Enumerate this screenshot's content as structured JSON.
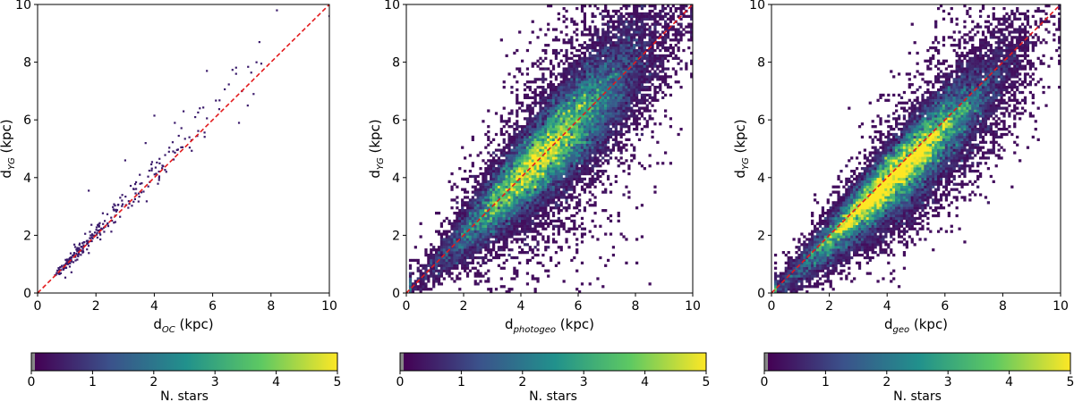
{
  "chart_data": [
    {
      "type": "scatter",
      "id": "panel-oc",
      "xlabel_main": "d",
      "xlabel_sub": "OC",
      "xlabel_unit": " (kpc)",
      "ylabel_main": "d",
      "ylabel_sub": "YG",
      "ylabel_unit": " (kpc)",
      "xlim": [
        0,
        10
      ],
      "ylim": [
        0,
        10
      ],
      "xticks": [
        "0",
        "2",
        "4",
        "6",
        "8",
        "10"
      ],
      "yticks": [
        "0",
        "2",
        "4",
        "6",
        "8",
        "10"
      ],
      "reference_line": "y = x",
      "point_color": "#3a1a6b",
      "line_color": "#e31a1c",
      "sample_points": [
        [
          0.8,
          0.8
        ],
        [
          1.2,
          1.3
        ],
        [
          1.5,
          1.6
        ],
        [
          1.8,
          1.8
        ],
        [
          1.75,
          3.55
        ],
        [
          2.1,
          2.3
        ],
        [
          2.3,
          2.5
        ],
        [
          2.6,
          2.9
        ],
        [
          2.9,
          3.4
        ],
        [
          3.0,
          4.6
        ],
        [
          3.3,
          3.6
        ],
        [
          3.5,
          4.1
        ],
        [
          3.7,
          5.2
        ],
        [
          4.0,
          6.15
        ],
        [
          4.3,
          4.4
        ],
        [
          4.5,
          4.9
        ],
        [
          4.7,
          5.9
        ],
        [
          5.0,
          6.3
        ],
        [
          5.2,
          5.4
        ],
        [
          5.4,
          6.1
        ],
        [
          5.8,
          7.7
        ],
        [
          6.8,
          7.6
        ],
        [
          7.0,
          7.0
        ],
        [
          7.4,
          6.9
        ],
        [
          6.9,
          5.9
        ],
        [
          7.2,
          6.5
        ],
        [
          7.6,
          8.7
        ],
        [
          7.5,
          8.0
        ],
        [
          8.2,
          9.8
        ],
        [
          10.0,
          9.6
        ]
      ]
    },
    {
      "type": "heatmap",
      "id": "panel-photogeo",
      "xlabel_main": "d",
      "xlabel_sub": "photogeo",
      "xlabel_unit": " (kpc)",
      "ylabel_main": "d",
      "ylabel_sub": "YG",
      "ylabel_unit": " (kpc)",
      "xlim": [
        0,
        10
      ],
      "ylim": [
        0,
        10
      ],
      "xticks": [
        "0",
        "2",
        "4",
        "6",
        "8",
        "10"
      ],
      "yticks": [
        "0",
        "2",
        "4",
        "6",
        "8",
        "10"
      ],
      "reference_line": "y = x",
      "density_peak_x": 5.0,
      "ridge_slope": 1.0,
      "scatter_width_kpc": 1.1,
      "colorbar": {
        "label": "N. stars",
        "min": 0,
        "max": 5,
        "ticks": [
          "0",
          "1",
          "2",
          "3",
          "4",
          "5"
        ],
        "colormap": "viridis"
      }
    },
    {
      "type": "heatmap",
      "id": "panel-geo",
      "xlabel_main": "d",
      "xlabel_sub": "geo",
      "xlabel_unit": " (kpc)",
      "ylabel_main": "d",
      "ylabel_sub": "YG",
      "ylabel_unit": " (kpc)",
      "xlim": [
        0,
        10
      ],
      "ylim": [
        0,
        10
      ],
      "xticks": [
        "0",
        "2",
        "4",
        "6",
        "8",
        "10"
      ],
      "yticks": [
        "0",
        "2",
        "4",
        "6",
        "8",
        "10"
      ],
      "reference_line": "y = x",
      "density_peak_x": 4.5,
      "ridge_slope": 1.0,
      "scatter_width_kpc": 0.8,
      "colorbar": {
        "label": "N. stars",
        "min": 0,
        "max": 5,
        "ticks": [
          "0",
          "1",
          "2",
          "3",
          "4",
          "5"
        ],
        "colormap": "viridis"
      }
    }
  ],
  "colorbar_first": {
    "label": "N. stars",
    "min": 0,
    "max": 5,
    "ticks": [
      "0",
      "1",
      "2",
      "3",
      "4",
      "5"
    ],
    "colormap": "viridis"
  },
  "colors": {
    "viridis": [
      "#440154",
      "#3b528b",
      "#21918c",
      "#5ec962",
      "#fde725"
    ],
    "axis": "#000000"
  }
}
